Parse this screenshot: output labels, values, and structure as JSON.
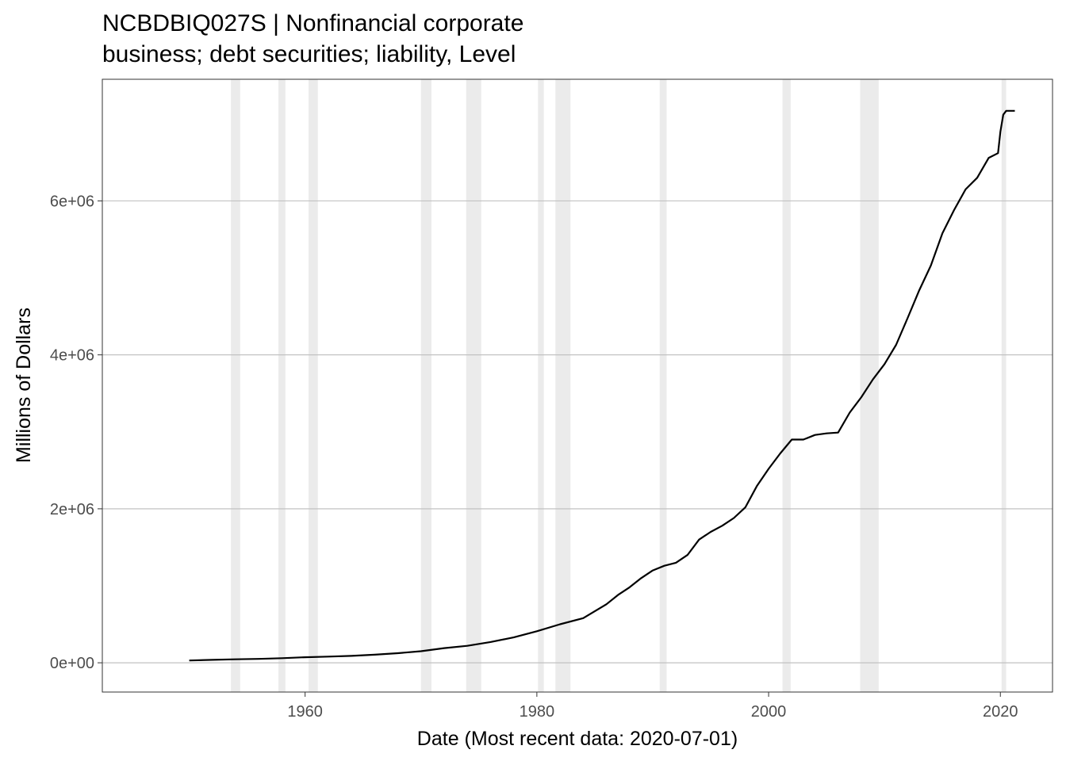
{
  "chart_data": {
    "type": "line",
    "title": "NCBDBIQ027S | Nonfinancial corporate business; debt securities; liability, Level",
    "title_lines": [
      "NCBDBIQ027S | Nonfinancial corporate",
      "business; debt securities; liability, Level"
    ],
    "xlabel": "Date (Most recent data: 2020-07-01)",
    "ylabel": "Millions of Dollars",
    "xlim": [
      1942.5,
      2024.5
    ],
    "ylim": [
      -380000,
      7580000
    ],
    "x_ticks": [
      1960,
      1980,
      2000,
      2020
    ],
    "y_ticks": [
      0,
      2000000,
      4000000,
      6000000
    ],
    "y_tick_labels": [
      "0e+00",
      "2e+06",
      "4e+06",
      "6e+06"
    ],
    "grid": true,
    "line_color": "#000000",
    "recession_color": "#ebebeb",
    "recessions": [
      [
        1953.6,
        1954.4
      ],
      [
        1957.7,
        1958.3
      ],
      [
        1960.3,
        1961.1
      ],
      [
        1970.0,
        1970.9
      ],
      [
        1973.9,
        1975.2
      ],
      [
        1980.1,
        1980.6
      ],
      [
        1981.6,
        1982.9
      ],
      [
        1990.6,
        1991.2
      ],
      [
        2001.2,
        2001.9
      ],
      [
        2007.9,
        2009.5
      ],
      [
        2020.1,
        2020.5
      ]
    ],
    "series": [
      {
        "x": [
          1950.0,
          1952.0,
          1954.0,
          1956.0,
          1958.0,
          1960.0,
          1962.0,
          1964.0,
          1966.0,
          1968.0,
          1970.0,
          1972.0,
          1974.0,
          1976.0,
          1978.0,
          1980.0,
          1982.0,
          1984.0,
          1986.0,
          1987.0,
          1988.0,
          1989.0,
          1990.0,
          1991.0,
          1992.0,
          1993.0,
          1994.0,
          1995.0,
          1996.0,
          1997.0,
          1998.0,
          1999.0,
          2000.0,
          2001.0,
          2002.0,
          2003.0,
          2004.0,
          2005.0,
          2006.0,
          2007.0,
          2008.0,
          2009.0,
          2010.0,
          2011.0,
          2012.0,
          2013.0,
          2014.0,
          2015.0,
          2016.0,
          2017.0,
          2018.0,
          2019.0,
          2019.8,
          2020.0,
          2020.25,
          2020.5,
          2021.25
        ],
        "y": [
          30000,
          38000,
          45000,
          50000,
          60000,
          72000,
          80000,
          90000,
          105000,
          125000,
          150000,
          190000,
          220000,
          270000,
          330000,
          410000,
          500000,
          580000,
          760000,
          880000,
          980000,
          1100000,
          1200000,
          1260000,
          1300000,
          1400000,
          1600000,
          1700000,
          1780000,
          1880000,
          2020000,
          2300000,
          2520000,
          2720000,
          2900000,
          2900000,
          2960000,
          2980000,
          2990000,
          3250000,
          3450000,
          3680000,
          3880000,
          4130000,
          4480000,
          4840000,
          5160000,
          5580000,
          5880000,
          6150000,
          6300000,
          6560000,
          6620000,
          6900000,
          7120000,
          7170000,
          7170000
        ]
      }
    ]
  }
}
